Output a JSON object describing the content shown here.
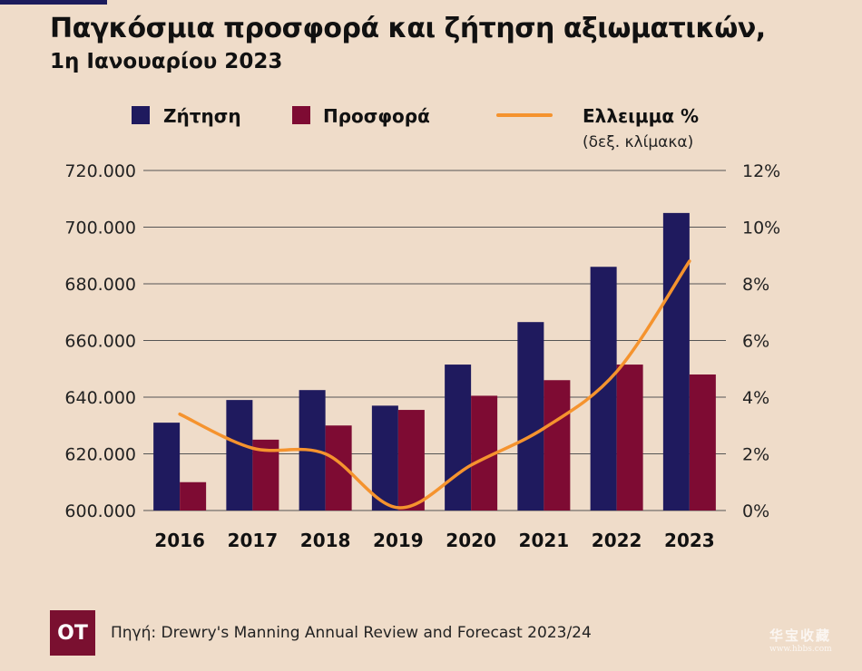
{
  "title": "Παγκόσμια προσφορά και ζήτηση αξιωματικών,",
  "subtitle": "1η Ιανουαρίου 2023",
  "source": "Πηγή: Drewry's Manning Annual Review and Forecast 2023/24",
  "logo_text": "OT",
  "watermark": {
    "text": "华宝收藏",
    "sub": "www.hbbs.com"
  },
  "colors": {
    "demand": "#1f1a5e",
    "supply": "#7e0b33",
    "deficit": "#f5932e",
    "background": "#efdcc9",
    "grid": "#555555"
  },
  "chart_data": {
    "type": "bar",
    "categories": [
      "2016",
      "2017",
      "2018",
      "2019",
      "2020",
      "2021",
      "2022",
      "2023"
    ],
    "series": [
      {
        "name": "Ζήτηση",
        "type": "bar",
        "axis": "left",
        "values": [
          631000,
          639000,
          642500,
          637000,
          651500,
          666500,
          686000,
          705000
        ]
      },
      {
        "name": "Προσφορά",
        "type": "bar",
        "axis": "left",
        "values": [
          610000,
          625000,
          630000,
          635500,
          640500,
          646000,
          651500,
          648000
        ]
      },
      {
        "name": "Ελλειμμα %",
        "name_note": "(δεξ. κλίμακα)",
        "type": "line",
        "axis": "right",
        "values": [
          3.4,
          2.2,
          2.0,
          0.1,
          1.6,
          2.9,
          4.9,
          8.8
        ]
      }
    ],
    "y_left": {
      "range": [
        600000,
        720000
      ],
      "ticks": [
        "600.000",
        "620.000",
        "640.000",
        "660.000",
        "680.000",
        "700.000",
        "720.000"
      ]
    },
    "y_right": {
      "range": [
        0,
        12
      ],
      "ticks": [
        "0%",
        "2%",
        "4%",
        "6%",
        "8%",
        "10%",
        "12%"
      ]
    },
    "grid": true,
    "legend_position": "top"
  }
}
